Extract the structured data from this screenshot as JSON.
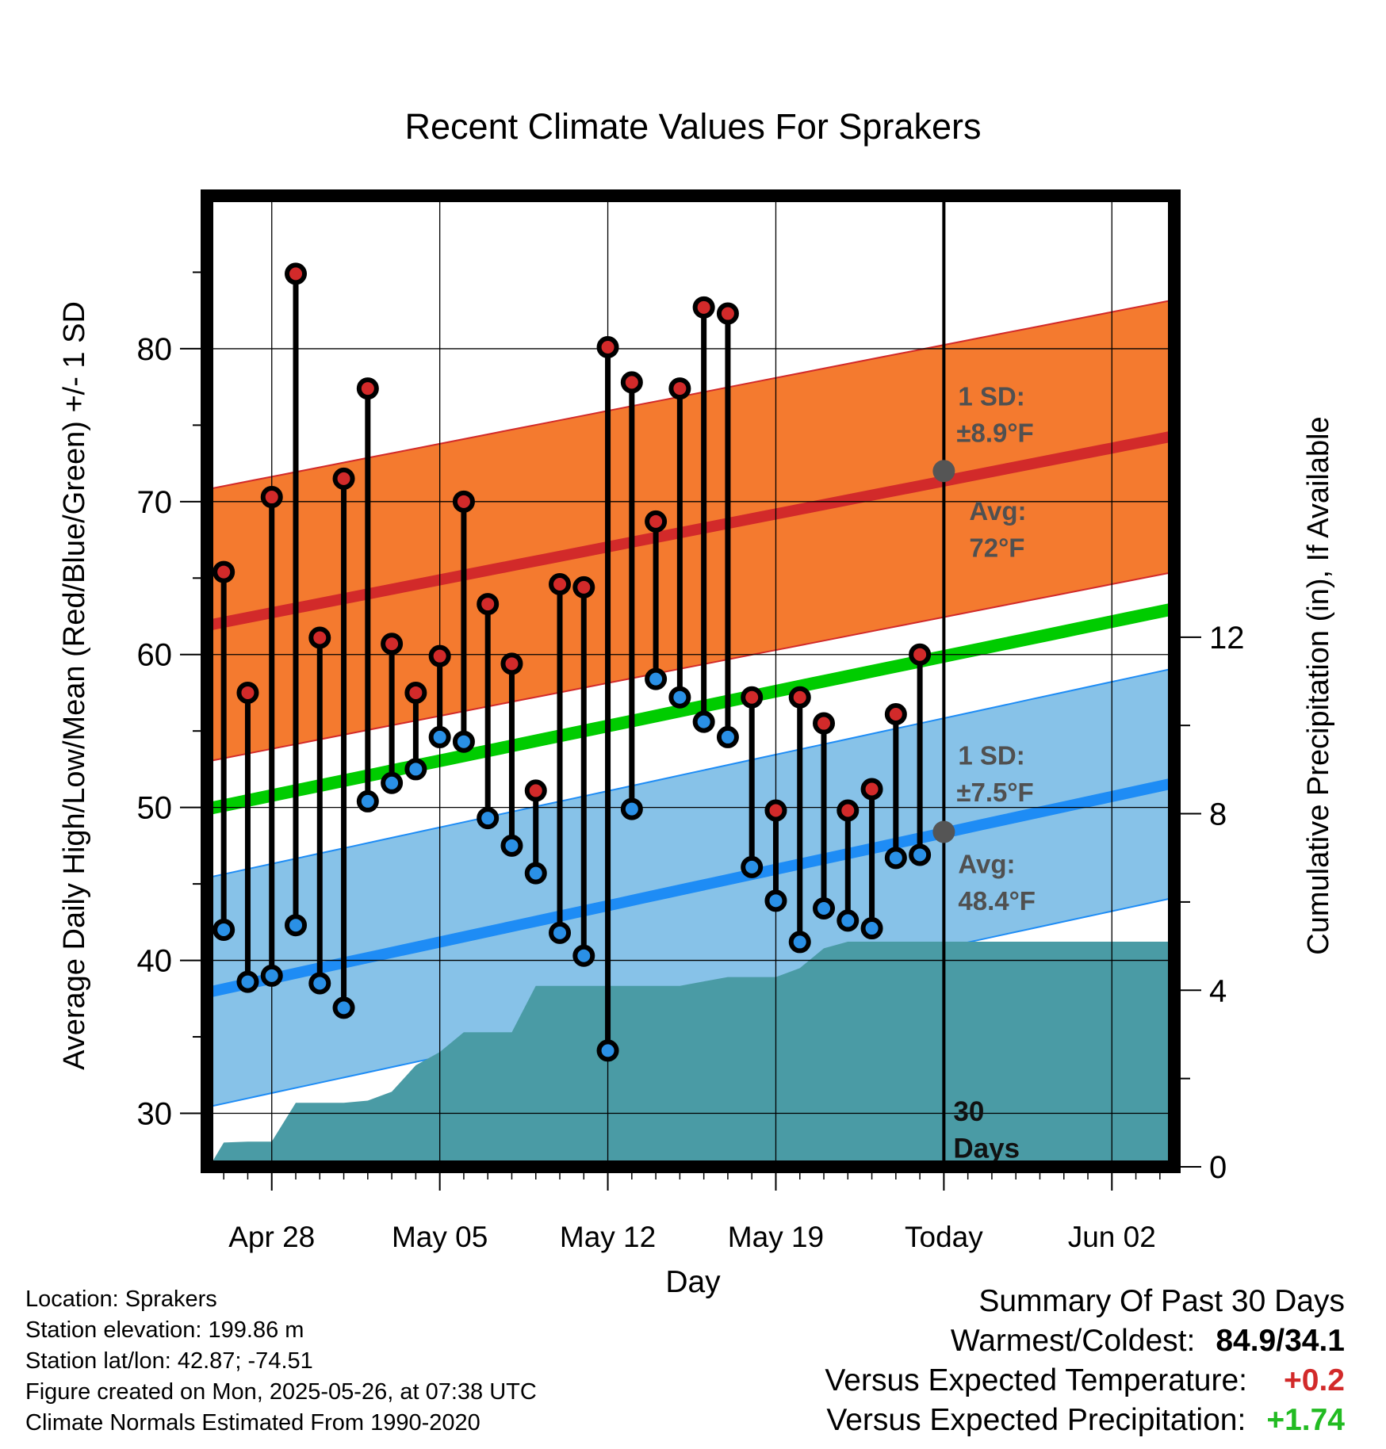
{
  "chart_data": {
    "type": "line",
    "title": "Recent Climate Values For Sprakers",
    "xlabel": "Day",
    "ylabel": "Average Daily High/Low/Mean (Red/Blue/Green) +/- 1 SD",
    "y2label": "Cumulative Precipitation (in), If Available",
    "x_ticks": [
      "Apr 28",
      "May 05",
      "May 12",
      "May 19",
      "Today",
      "Jun 02"
    ],
    "x_tick_days": [
      0,
      7,
      14,
      21,
      28,
      35
    ],
    "xlim_days": [
      -2.7,
      37.6
    ],
    "ylim": [
      26.5,
      90
    ],
    "y_ticks": [
      30,
      40,
      50,
      60,
      70,
      80
    ],
    "y2lim": [
      0,
      22
    ],
    "y2_ticks": [
      0,
      4,
      8,
      12
    ],
    "grid": true,
    "today_day": 28,
    "daily": {
      "days": [
        -2,
        -1,
        0,
        1,
        2,
        3,
        4,
        5,
        6,
        7,
        8,
        9,
        10,
        11,
        12,
        13,
        14,
        15,
        16,
        17,
        18,
        19,
        20,
        21,
        22,
        23,
        24,
        25,
        26,
        27
      ],
      "highs": [
        65.4,
        57.5,
        70.3,
        84.9,
        61.1,
        71.5,
        77.4,
        60.7,
        57.5,
        59.9,
        70.0,
        63.3,
        59.4,
        51.1,
        64.6,
        64.4,
        80.1,
        77.8,
        68.7,
        77.4,
        82.7,
        82.3,
        57.2,
        49.8,
        57.2,
        55.5,
        49.8,
        51.2,
        56.1,
        60.0
      ],
      "lows": [
        42.0,
        38.6,
        39.0,
        42.3,
        38.5,
        36.9,
        50.4,
        51.6,
        52.5,
        54.6,
        54.3,
        49.3,
        47.5,
        45.7,
        41.8,
        40.3,
        34.1,
        49.9,
        58.4,
        57.2,
        55.6,
        54.6,
        46.1,
        43.9,
        41.2,
        43.4,
        42.6,
        42.1,
        46.7,
        46.9
      ]
    },
    "normals": {
      "high_mean": [
        61.9,
        74.3
      ],
      "low_mean": [
        37.9,
        51.6
      ],
      "mean": [
        49.9,
        63.0
      ],
      "high_sd": 8.9,
      "low_sd": 7.5
    },
    "precip_cumulative": {
      "days": [
        -2.6,
        -2,
        -1,
        0,
        1,
        2,
        3,
        4,
        5,
        6,
        7,
        8,
        9,
        10,
        11,
        12,
        13,
        14,
        15,
        16,
        17,
        18,
        19,
        20,
        21,
        22,
        23,
        24,
        25,
        26,
        27,
        28,
        37.6
      ],
      "values": [
        0.0,
        0.55,
        0.57,
        0.57,
        1.45,
        1.45,
        1.45,
        1.5,
        1.7,
        2.3,
        2.6,
        3.05,
        3.05,
        3.05,
        4.1,
        4.1,
        4.1,
        4.1,
        4.1,
        4.1,
        4.1,
        4.2,
        4.3,
        4.3,
        4.3,
        4.5,
        4.95,
        5.1,
        5.1,
        5.1,
        5.1,
        5.1,
        5.1
      ]
    },
    "annotations": {
      "high_sd_label": [
        "1 SD:",
        "±8.9°F"
      ],
      "high_avg_label": [
        "Avg:",
        "72°F"
      ],
      "high_avg_value": 72,
      "low_sd_label": [
        "1 SD:",
        "±7.5°F"
      ],
      "low_avg_label": [
        "Avg:",
        "48.4°F"
      ],
      "low_avg_value": 48.4,
      "period_label": [
        "30",
        "Days"
      ]
    },
    "colors": {
      "high_band": "#f47a2f",
      "high_line": "#d22a2a",
      "low_band": "#87c2e8",
      "low_line": "#1e8cf5",
      "mean_line": "#00cc00",
      "precip": "#4a9ba5",
      "high_dot": "#d22a2a",
      "low_dot": "#2a90e6",
      "avg_dot": "#555555",
      "annotation_text": "#505050"
    }
  },
  "info": {
    "location": "Location: Sprakers",
    "elevation": "Station elevation: 199.86 m",
    "latlon": "Station lat/lon: 42.87; -74.51",
    "created": "Figure created on Mon, 2025-05-26, at 07:38 UTC",
    "normals": "Climate Normals Estimated From 1990-2020"
  },
  "summary": {
    "title": "Summary Of Past 30 Days",
    "warm_cold_label": "Warmest/Coldest:",
    "warm_cold_value": "84.9/34.1",
    "temp_label": "Versus Expected Temperature:",
    "temp_value": "+0.2",
    "temp_color": "#d22a2a",
    "precip_label": "Versus Expected Precipitation:",
    "precip_value": "+1.74",
    "precip_color": "#22bb22"
  }
}
